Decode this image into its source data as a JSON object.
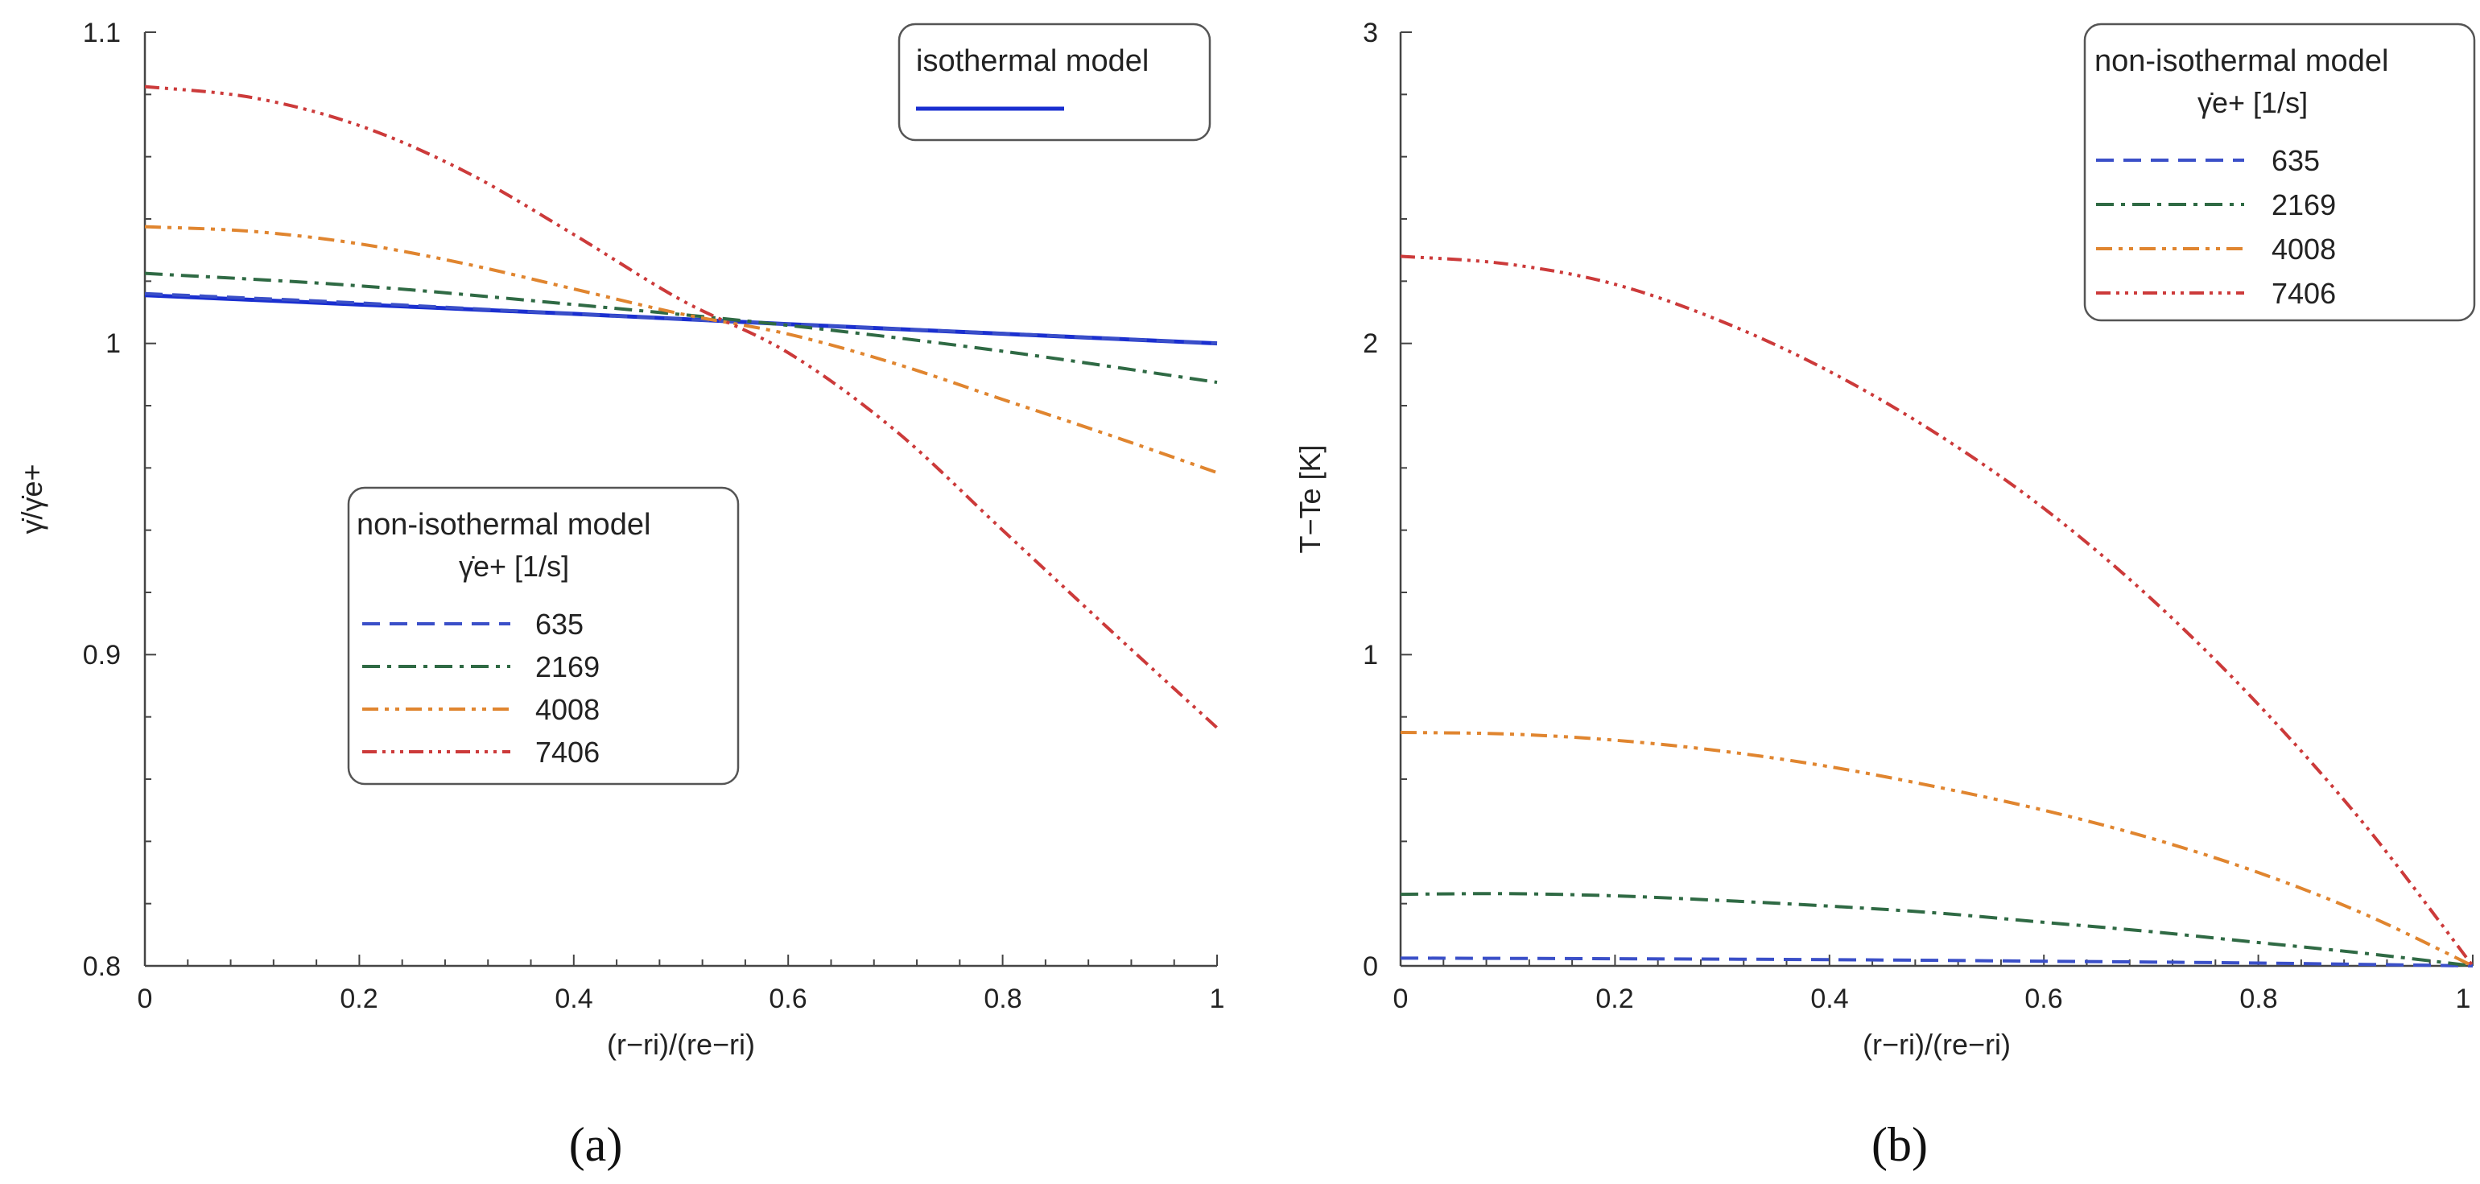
{
  "figure": {
    "panel_labels": [
      "(a)",
      "(b)"
    ]
  },
  "colors": {
    "s635": "#3a4fc8",
    "s2169": "#2f6a44",
    "s4008": "#e0852f",
    "s7406": "#cc3a3a",
    "isothermal": "#1a2fd0"
  },
  "chart_data": [
    {
      "type": "line",
      "title": "",
      "xlabel": "(r−ri)/(re−ri)",
      "ylabel": "γ̇/γ̇e+",
      "xlim": [
        0,
        1
      ],
      "ylim": [
        0.8,
        1.1
      ],
      "xticks": [
        "0",
        "0.2",
        "0.4",
        "0.6",
        "0.8",
        "1"
      ],
      "yticks": [
        "0.8",
        "0.9",
        "1",
        "1.1"
      ],
      "legend_isothermal": {
        "title": "isothermal model"
      },
      "legend_nonisothermal": {
        "title": "non-isothermal model",
        "subtitle": "γ̇e+ [1/s]"
      },
      "series": [
        {
          "name": "isothermal model",
          "x": [
            0,
            0.2,
            0.4,
            0.6,
            0.8,
            1
          ],
          "values": [
            1.0155,
            1.0125,
            1.0095,
            1.0062,
            1.0031,
            1.0
          ]
        },
        {
          "name": "635",
          "x": [
            0,
            0.2,
            0.4,
            0.6,
            0.8,
            1
          ],
          "values": [
            1.016,
            1.013,
            1.0095,
            1.0062,
            1.0032,
            1.0
          ]
        },
        {
          "name": "2169",
          "x": [
            0,
            0.2,
            0.4,
            0.6,
            0.8,
            1
          ],
          "values": [
            1.0225,
            1.0185,
            1.0125,
            1.0058,
            0.9975,
            0.9875
          ]
        },
        {
          "name": "4008",
          "x": [
            0,
            0.1,
            0.2,
            0.3,
            0.4,
            0.5,
            0.6,
            0.7,
            0.8,
            0.9,
            1
          ],
          "values": [
            1.0375,
            1.036,
            1.032,
            1.0255,
            1.0175,
            1.0095,
            1.003,
            0.9935,
            0.982,
            0.9705,
            0.9585
          ]
        },
        {
          "name": "7406",
          "x": [
            0,
            0.1,
            0.2,
            0.3,
            0.4,
            0.5,
            0.6,
            0.7,
            0.8,
            0.9,
            1
          ],
          "values": [
            1.0825,
            1.079,
            1.07,
            1.055,
            1.035,
            1.014,
            0.997,
            0.972,
            0.94,
            0.908,
            0.8765
          ]
        }
      ]
    },
    {
      "type": "line",
      "title": "",
      "xlabel": "(r−ri)/(re−ri)",
      "ylabel": "T−Te [K]",
      "xlim": [
        0,
        1
      ],
      "ylim": [
        0,
        3
      ],
      "xticks": [
        "0",
        "0.2",
        "0.4",
        "0.6",
        "0.8",
        "1"
      ],
      "yticks": [
        "0",
        "1",
        "2",
        "3"
      ],
      "legend_nonisothermal": {
        "title": "non-isothermal model",
        "subtitle": "γ̇e+ [1/s]"
      },
      "series": [
        {
          "name": "635",
          "x": [
            0,
            0.2,
            0.4,
            0.6,
            0.8,
            1
          ],
          "values": [
            0.025,
            0.023,
            0.02,
            0.015,
            0.009,
            0.0
          ]
        },
        {
          "name": "2169",
          "x": [
            0,
            0.1,
            0.2,
            0.3,
            0.4,
            0.5,
            0.6,
            0.7,
            0.8,
            0.9,
            1
          ],
          "values": [
            0.23,
            0.232,
            0.225,
            0.21,
            0.192,
            0.17,
            0.14,
            0.11,
            0.075,
            0.04,
            0.0
          ]
        },
        {
          "name": "4008",
          "x": [
            0,
            0.1,
            0.2,
            0.3,
            0.4,
            0.5,
            0.6,
            0.7,
            0.8,
            0.9,
            1
          ],
          "values": [
            0.75,
            0.745,
            0.725,
            0.69,
            0.64,
            0.575,
            0.5,
            0.41,
            0.3,
            0.165,
            0.0
          ]
        },
        {
          "name": "7406",
          "x": [
            0,
            0.1,
            0.2,
            0.3,
            0.4,
            0.5,
            0.6,
            0.7,
            0.8,
            0.9,
            1
          ],
          "values": [
            2.28,
            2.255,
            2.19,
            2.07,
            1.91,
            1.71,
            1.47,
            1.18,
            0.84,
            0.45,
            0.0
          ]
        }
      ]
    }
  ]
}
